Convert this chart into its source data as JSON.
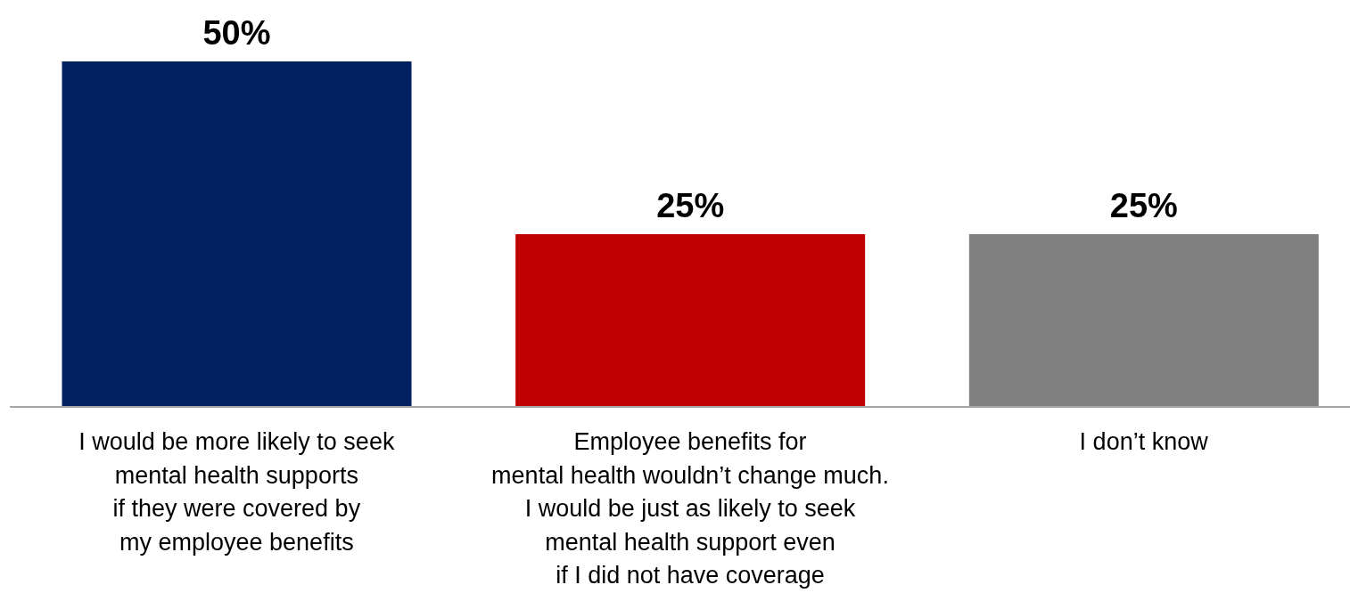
{
  "chart_data": {
    "type": "bar",
    "categories": [
      "I would be more likely to seek\nmental health supports\nif they were covered by\nmy employee benefits",
      "Employee benefits for\nmental health wouldn’t change much.\nI would be just as likely to seek\nmental health support even\nif I did not have coverage",
      "I don’t know"
    ],
    "values": [
      50,
      25,
      25
    ],
    "colors": [
      "#002060",
      "#c00000",
      "#808080"
    ],
    "value_labels": [
      "50%",
      "25%",
      "25%"
    ]
  }
}
